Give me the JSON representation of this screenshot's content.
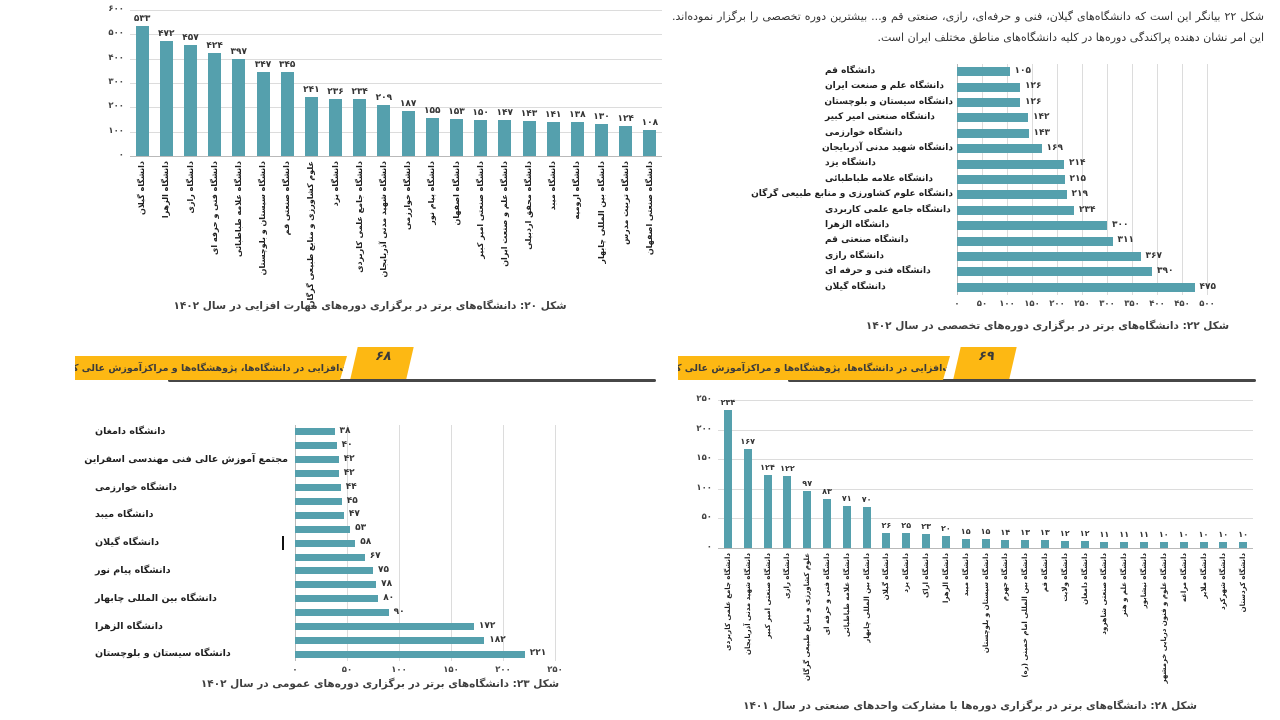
{
  "colors": {
    "bar": "#55a0ad",
    "banner_yellow": "#FDB813",
    "banner_shadow": "#474747",
    "grid": "#dcdcdc"
  },
  "banner": {
    "title": "مهارت‌افزایی در دانشگاه‌ها، پژوهشگاه‌ها و مراکزآموزش عالی کشور",
    "left_page_number": "۶۸",
    "right_page_number": "۶۹"
  },
  "description_text": "شکل ۲۲ بیانگر این است که دانشگاه‌های گیلان، فنی و حرفه‌ای، رازی، صنعتی قم و... بیشترین دوره تخصصی را برگزار نموده‌اند. این امر نشان دهنده پراکندگی دوره‌ها در کلیه دانشگاه‌های مناطق مختلف ایران است.",
  "chart_data": [
    {
      "id": "fig20",
      "type": "bar",
      "title": "شکل ۲۰: دانشگاه‌های برتر در برگزاری دوره‌های مهارت افزایی در سال ۱۴۰۲",
      "categories": [
        "دانشگاه گیلان",
        "دانشگاه الزهرا",
        "دانشگاه رازی",
        "دانشگاه فنی و حرفه ای",
        "دانشگاه علامه طباطبائی",
        "دانشگاه سیستان و بلوچستان",
        "دانشگاه صنعتی قم",
        "علوم کشاورزی و منابع طبیعی گرگان",
        "دانشگاه یزد",
        "دانشگاه جامع علمی کاربردی",
        "دانشگاه شهید مدنی آذربایجان",
        "دانشگاه خوارزمی",
        "دانشگاه پیام نور",
        "دانشگاه اصفهان",
        "دانشگاه صنعتی امیر کبیر",
        "دانشگاه علم و صنعت ایران",
        "دانشگاه محقق اردبیلی",
        "دانشگاه میبد",
        "دانشگاه ارومیه",
        "دانشگاه بین المللی چابهار",
        "دانشگاه تربیت مدرس",
        "دانشگاه صنعتی اصفهان"
      ],
      "values": [
        533,
        472,
        457,
        424,
        397,
        347,
        345,
        241,
        236,
        234,
        209,
        187,
        155,
        153,
        150,
        147,
        143,
        141,
        138,
        130,
        124,
        108
      ],
      "xlabel": "",
      "ylabel": "",
      "ylim": [
        0,
        600
      ],
      "ytick_step": 100,
      "grid": true,
      "legend": false
    },
    {
      "id": "fig22",
      "type": "bar-horizontal",
      "title": "شکل ۲۲: دانشگاه‌های برتر در برگزاری دوره‌های تخصصی در سال ۱۴۰۲",
      "categories": [
        "دانشگاه قم",
        "دانشگاه علم و صنعت ایران",
        "دانشگاه سیستان و بلوچستان",
        "دانشگاه صنعتی امیر کبیر",
        "دانشگاه خوارزمی",
        "دانشگاه شهید مدنی آذربایجان",
        "دانشگاه یزد",
        "دانشگاه علامه طباطبائی",
        "دانشگاه علوم کشاورزی و منابع طبیعی گرگان",
        "دانشگاه جامع علمی کاربردی",
        "دانشگاه الزهرا",
        "دانشگاه صنعتی قم",
        "دانشگاه رازی",
        "دانشگاه فنی و حرفه ای",
        "دانشگاه گیلان"
      ],
      "values": [
        105,
        126,
        126,
        142,
        143,
        169,
        214,
        215,
        219,
        234,
        300,
        311,
        367,
        390,
        475
      ],
      "xlabel": "",
      "ylabel": "",
      "xlim": [
        0,
        500
      ],
      "xtick_step": 50,
      "grid": true,
      "legend": false
    },
    {
      "id": "fig23",
      "type": "bar-horizontal",
      "title": "شکل ۲۳: دانشگاه‌های برتر در برگزاری دوره‌های عمومی در سال ۱۴۰۲",
      "categories": [
        "دانشگاه دامغان",
        "",
        "مجتمع آموزش عالی فنی مهندسی اسفراین",
        "",
        "دانشگاه خوارزمی",
        "",
        "دانشگاه میبد",
        "",
        "دانشگاه گیلان",
        "",
        "دانشگاه پیام نور",
        "",
        "دانشگاه بین المللی چابهار",
        "",
        "دانشگاه الزهرا",
        "",
        "دانشگاه سیستان و بلوچستان"
      ],
      "values": [
        38,
        40,
        42,
        42,
        44,
        45,
        47,
        53,
        58,
        67,
        75,
        78,
        80,
        90,
        172,
        182,
        221
      ],
      "xlabel": "",
      "ylabel": "",
      "xlim": [
        0,
        250
      ],
      "xtick_step": 50,
      "grid": true,
      "legend": false
    },
    {
      "id": "fig28",
      "type": "bar",
      "title": "شکل ۲۸: دانشگاه‌های برتر در برگزاری دوره‌ها با مشارکت واحدهای صنعتی در سال ۱۴۰۱",
      "categories": [
        "دانشگاه جامع علمی کاربردی",
        "دانشگاه شهید مدنی آذربایجان",
        "دانشگاه صنعتی امیر کبیر",
        "دانشگاه رازی",
        "علوم کشاورزی و منابع طبیعی گرگان",
        "دانشگاه فنی و حرفه ای",
        "دانشگاه علامه طباطبائی",
        "دانشگاه بین المللی چابهار",
        "دانشگاه گیلان",
        "دانشگاه یزد",
        "دانشگاه اراک",
        "دانشگاه الزهرا",
        "دانشگاه میبد",
        "دانشگاه سیستان و بلوچستان",
        "دانشگاه جهرم",
        "دانشگاه بین المللی امام خمینی (ره)",
        "دانشگاه قم",
        "دانشگاه ولایت",
        "دانشگاه دامغان",
        "دانشگاه صنعتی شاهرود",
        "دانشگاه علم و هنر",
        "دانشگاه نیشابور",
        "دانشگاه علوم و فنون دریایی خرمشهر",
        "دانشگاه مراغه",
        "دانشگاه ملایر",
        "دانشگاه شهرکرد",
        "دانشگاه کردستان"
      ],
      "values": [
        234,
        167,
        124,
        122,
        97,
        83,
        71,
        70,
        26,
        25,
        23,
        20,
        15,
        15,
        14,
        13,
        13,
        12,
        12,
        11,
        11,
        11,
        10,
        10,
        10,
        10,
        10
      ],
      "xlabel": "",
      "ylabel": "",
      "ylim": [
        0,
        250
      ],
      "ytick_step": 50,
      "grid": true,
      "legend": false
    }
  ]
}
